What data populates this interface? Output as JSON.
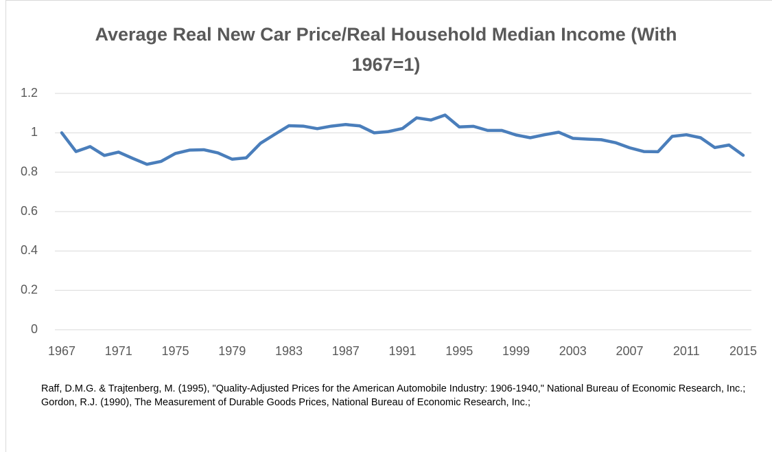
{
  "chart_data": {
    "type": "line",
    "title": "Average Real New Car Price/Real Household Median Income (With 1967=1)",
    "note": "Raff, D.M.G. & Trajtenberg, M. (1995), \"Quality-Adjusted Prices for the American Automobile Industry: 1906-1940,\" National Bureau of Economic Research, Inc.; Gordon, R.J. (1990), The Measurement of Durable Goods Prices, National Bureau of Economic Research, Inc.;",
    "x": [
      1967,
      1968,
      1969,
      1970,
      1971,
      1972,
      1973,
      1974,
      1975,
      1976,
      1977,
      1978,
      1979,
      1980,
      1981,
      1982,
      1983,
      1984,
      1985,
      1986,
      1987,
      1988,
      1989,
      1990,
      1991,
      1992,
      1993,
      1994,
      1995,
      1996,
      1997,
      1998,
      1999,
      2000,
      2001,
      2002,
      2003,
      2004,
      2005,
      2006,
      2007,
      2008,
      2009,
      2010,
      2011,
      2012,
      2013,
      2014,
      2015
    ],
    "series": [
      {
        "color": "#4a7ebb",
        "values": [
          1.0,
          0.905,
          0.93,
          0.885,
          0.902,
          0.87,
          0.84,
          0.855,
          0.895,
          0.912,
          0.914,
          0.898,
          0.866,
          0.873,
          0.947,
          0.992,
          1.036,
          1.034,
          1.021,
          1.034,
          1.042,
          1.035,
          1.0,
          1.006,
          1.022,
          1.076,
          1.065,
          1.09,
          1.03,
          1.033,
          1.012,
          1.012,
          0.989,
          0.975,
          0.99,
          1.003,
          0.972,
          0.968,
          0.965,
          0.95,
          0.924,
          0.905,
          0.904,
          0.982,
          0.99,
          0.975,
          0.925,
          0.938,
          0.886
        ]
      }
    ],
    "xlim": [
      1967,
      2015
    ],
    "xticks": [
      1967,
      1971,
      1975,
      1979,
      1983,
      1987,
      1991,
      1995,
      1999,
      2003,
      2007,
      2011,
      2015
    ],
    "ylim": [
      0,
      1.2
    ],
    "yticks": [
      0,
      0.2,
      0.4,
      0.6,
      0.8,
      1,
      1.2
    ],
    "grid": true
  }
}
